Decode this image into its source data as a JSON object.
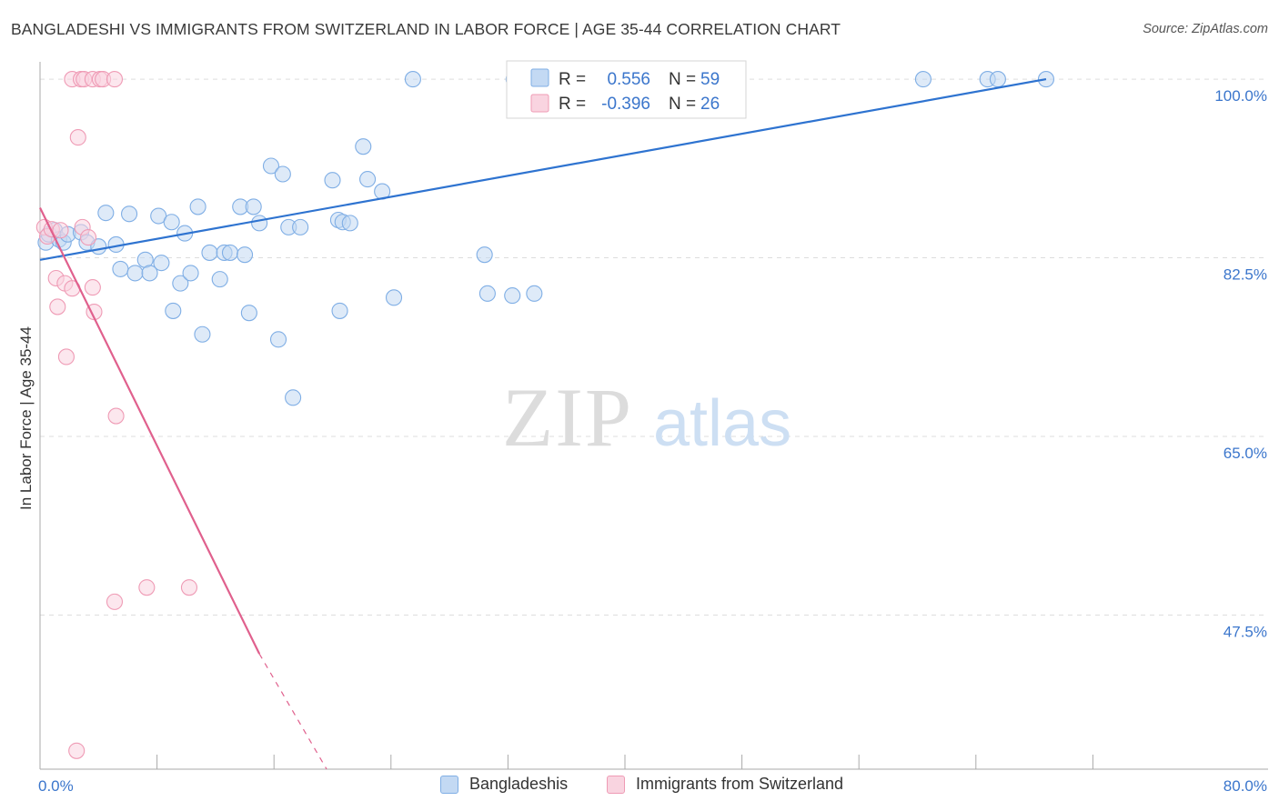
{
  "title": "BANGLADESHI VS IMMIGRANTS FROM SWITZERLAND IN LABOR FORCE | AGE 35-44 CORRELATION CHART",
  "source": "Source: ZipAtlas.com",
  "watermark": {
    "zip": "ZIP",
    "atlas": "atlas"
  },
  "colors": {
    "blue": "#7faee5",
    "blue_fill": "#c3d9f3",
    "blue_line": "#2e73d0",
    "pink": "#ef9bb5",
    "pink_fill": "#f9d4e0",
    "pink_line": "#e0608d",
    "axis_text": "#3b76cc",
    "grid": "#dddddd"
  },
  "legend": {
    "series1": {
      "r_label": "R =",
      "r_value": "0.556",
      "n_label": "N =",
      "n_value": "59"
    },
    "series2": {
      "r_label": "R =",
      "r_value": "-0.396",
      "n_label": "N =",
      "n_value": "26"
    }
  },
  "bottom_legend": [
    "Bangladeshis",
    "Immigrants from Switzerland"
  ],
  "chart_data": {
    "type": "scatter",
    "title": "BANGLADESHI VS IMMIGRANTS FROM SWITZERLAND IN LABOR FORCE | AGE 35-44 CORRELATION CHART",
    "xlabel": "",
    "ylabel": "In Labor Force | Age 35-44",
    "xlim": [
      0,
      80
    ],
    "ylim": [
      32.4,
      101.7
    ],
    "x_tick_labels": [
      {
        "value": 0,
        "label": "0.0%"
      },
      {
        "value": 80,
        "label": "80.0%"
      }
    ],
    "y_tick_labels": [
      {
        "value": 100,
        "label": "100.0%"
      },
      {
        "value": 82.5,
        "label": "82.5%"
      },
      {
        "value": 65,
        "label": "65.0%"
      },
      {
        "value": 47.5,
        "label": "47.5%"
      }
    ],
    "y_gridlines": [
      100,
      82.5,
      65,
      47.5
    ],
    "x_minor_ticks": [
      8,
      16,
      24,
      32,
      40,
      48,
      56,
      64,
      72
    ],
    "grid": true,
    "series": [
      {
        "name": "Bangladeshis",
        "r": 0.556,
        "n": 59,
        "points": [
          [
            0.4,
            84.0
          ],
          [
            0.6,
            84.8
          ],
          [
            1.0,
            85.2
          ],
          [
            1.3,
            84.3
          ],
          [
            1.6,
            84.0
          ],
          [
            1.9,
            84.8
          ],
          [
            2.8,
            85.0
          ],
          [
            3.2,
            84.0
          ],
          [
            4.0,
            83.6
          ],
          [
            4.5,
            86.9
          ],
          [
            5.2,
            83.8
          ],
          [
            5.5,
            81.4
          ],
          [
            6.1,
            86.8
          ],
          [
            6.5,
            81.0
          ],
          [
            7.2,
            82.3
          ],
          [
            7.5,
            81.0
          ],
          [
            8.1,
            86.6
          ],
          [
            8.3,
            82.0
          ],
          [
            9.0,
            86.0
          ],
          [
            9.1,
            77.3
          ],
          [
            9.6,
            80.0
          ],
          [
            9.9,
            84.9
          ],
          [
            10.3,
            81.0
          ],
          [
            10.8,
            87.5
          ],
          [
            11.1,
            75.0
          ],
          [
            11.6,
            83.0
          ],
          [
            12.3,
            80.4
          ],
          [
            12.6,
            83.0
          ],
          [
            13.0,
            83.0
          ],
          [
            13.7,
            87.5
          ],
          [
            14.0,
            82.8
          ],
          [
            14.3,
            77.1
          ],
          [
            14.6,
            87.5
          ],
          [
            15.0,
            85.9
          ],
          [
            15.8,
            91.5
          ],
          [
            16.3,
            74.5
          ],
          [
            16.6,
            90.7
          ],
          [
            17.0,
            85.5
          ],
          [
            17.3,
            68.8
          ],
          [
            17.8,
            85.5
          ],
          [
            20.0,
            90.1
          ],
          [
            20.4,
            86.2
          ],
          [
            20.5,
            77.3
          ],
          [
            20.7,
            86.0
          ],
          [
            21.2,
            85.9
          ],
          [
            22.1,
            93.4
          ],
          [
            22.4,
            90.2
          ],
          [
            23.4,
            89.0
          ],
          [
            24.2,
            78.6
          ],
          [
            25.5,
            100.0
          ],
          [
            30.4,
            82.8
          ],
          [
            30.6,
            79.0
          ],
          [
            32.4,
            100.0
          ],
          [
            32.3,
            78.8
          ],
          [
            33.8,
            79.0
          ],
          [
            60.4,
            100.0
          ],
          [
            64.8,
            100.0
          ],
          [
            65.5,
            100.0
          ],
          [
            68.8,
            100.0
          ]
        ],
        "trend": {
          "x": [
            0,
            68.8
          ],
          "y": [
            82.3,
            100.0
          ]
        }
      },
      {
        "name": "Immigrants from Switzerland",
        "r": -0.396,
        "n": 26,
        "points": [
          [
            0.3,
            85.5
          ],
          [
            0.5,
            84.6
          ],
          [
            0.8,
            85.3
          ],
          [
            1.1,
            80.5
          ],
          [
            1.2,
            77.7
          ],
          [
            1.4,
            85.2
          ],
          [
            1.7,
            80.0
          ],
          [
            1.8,
            72.8
          ],
          [
            2.2,
            79.5
          ],
          [
            2.5,
            34.2
          ],
          [
            2.2,
            100.0
          ],
          [
            2.6,
            94.3
          ],
          [
            2.8,
            100.0
          ],
          [
            2.9,
            85.5
          ],
          [
            3.0,
            100.0
          ],
          [
            3.3,
            84.5
          ],
          [
            3.6,
            79.6
          ],
          [
            3.7,
            77.2
          ],
          [
            3.6,
            100.0
          ],
          [
            4.1,
            100.0
          ],
          [
            4.3,
            100.0
          ],
          [
            5.1,
            100.0
          ],
          [
            5.2,
            67.0
          ],
          [
            5.1,
            48.8
          ],
          [
            7.3,
            50.2
          ],
          [
            10.2,
            50.2
          ]
        ],
        "trend": {
          "x": [
            0,
            15.0
          ],
          "y": [
            87.4,
            43.7
          ]
        },
        "trend_extension": {
          "x": [
            15.0,
            19.6
          ],
          "y": [
            43.7,
            32.4
          ]
        }
      }
    ]
  }
}
